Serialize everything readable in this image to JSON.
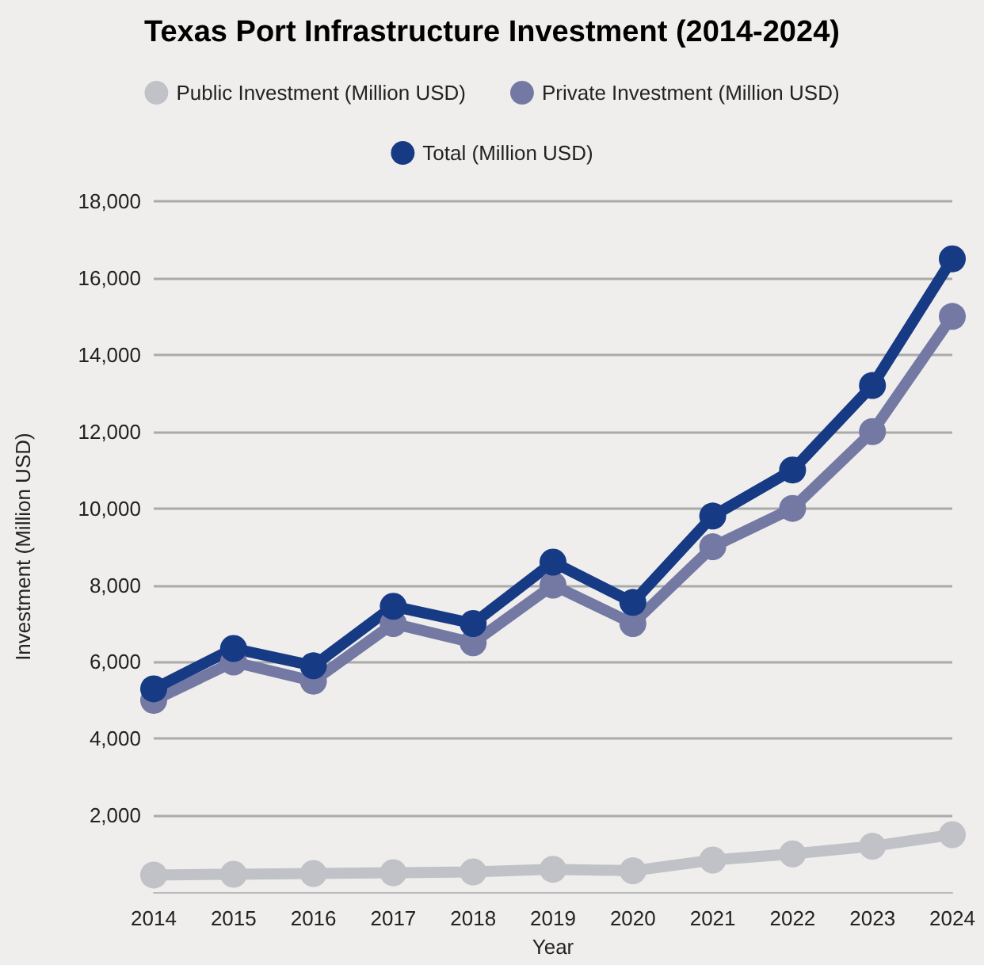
{
  "chart_data": {
    "type": "line",
    "title": "Texas Port Infrastructure Investment (2014-2024)",
    "xlabel": "Year",
    "ylabel": "Investment (Million USD)",
    "categories": [
      "2014",
      "2015",
      "2016",
      "2017",
      "2018",
      "2019",
      "2020",
      "2021",
      "2022",
      "2023",
      "2024"
    ],
    "series": [
      {
        "name": "Public Investment (Million USD)",
        "color": "#c0c2c7",
        "values": [
          450,
          470,
          490,
          510,
          530,
          600,
          560,
          840,
          1000,
          1200,
          1500
        ]
      },
      {
        "name": "Private Investment (Million USD)",
        "color": "#7479a3",
        "values": [
          5000,
          6000,
          5500,
          7000,
          6500,
          8000,
          7000,
          9000,
          10000,
          12000,
          15000
        ]
      },
      {
        "name": "Total (Million USD)",
        "color": "#173a85",
        "values": [
          5300,
          6350,
          5900,
          7450,
          7000,
          8600,
          7550,
          9800,
          11000,
          13200,
          16500
        ]
      }
    ],
    "ylim": [
      0,
      18000
    ],
    "yticks": [
      {
        "value": 2000,
        "label": "2,000"
      },
      {
        "value": 4000,
        "label": "4,000"
      },
      {
        "value": 6000,
        "label": "6,000"
      },
      {
        "value": 8000,
        "label": "8,000"
      },
      {
        "value": 10000,
        "label": "10,000"
      },
      {
        "value": 12000,
        "label": "12,000"
      },
      {
        "value": 14000,
        "label": "14,000"
      },
      {
        "value": 16000,
        "label": "16,000"
      },
      {
        "value": 18000,
        "label": "18,000"
      }
    ],
    "grid": "y",
    "legend": "top",
    "marker": "circle",
    "line_style": "solid"
  }
}
